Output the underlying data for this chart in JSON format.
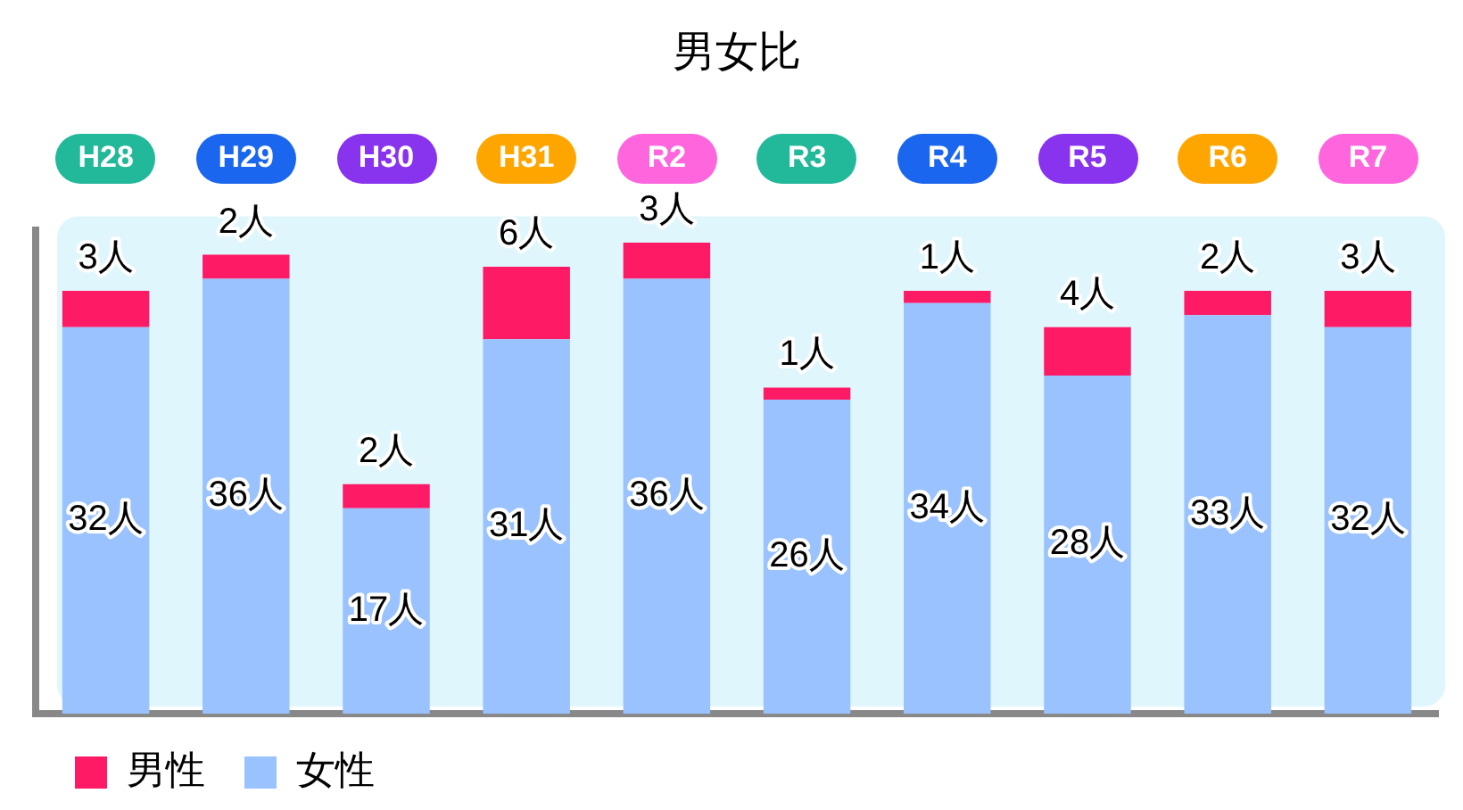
{
  "chart_data": {
    "type": "bar",
    "title": "男女比",
    "stacked": true,
    "legend": "bottom left",
    "grid": false,
    "categories": [
      "H28",
      "H29",
      "H30",
      "H31",
      "R2",
      "R3",
      "R4",
      "R5",
      "R6",
      "R7"
    ],
    "series": [
      {
        "name": "女性",
        "color": "#99c2ff",
        "values": [
          32,
          36,
          17,
          31,
          36,
          26,
          34,
          28,
          33,
          32
        ],
        "value_labels": [
          "32人",
          "36人",
          "17人",
          "31人",
          "36人",
          "26人",
          "34人",
          "28人",
          "33人",
          "32人"
        ]
      },
      {
        "name": "男性",
        "color": "#ff1a66",
        "values": [
          3,
          2,
          2,
          6,
          3,
          1,
          1,
          4,
          2,
          3
        ],
        "value_labels": [
          "3人",
          "2人",
          "2人",
          "6人",
          "3人",
          "1人",
          "1人",
          "4人",
          "2人",
          "3人"
        ]
      }
    ]
  }
}
